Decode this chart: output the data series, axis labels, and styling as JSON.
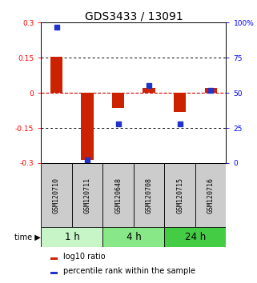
{
  "title": "GDS3433 / 13091",
  "samples": [
    "GSM120710",
    "GSM120711",
    "GSM120648",
    "GSM120708",
    "GSM120715",
    "GSM120716"
  ],
  "log10_ratio": [
    0.155,
    -0.285,
    -0.065,
    0.02,
    -0.08,
    0.02
  ],
  "percentile_rank": [
    97,
    2,
    28,
    55,
    28,
    52
  ],
  "ylim_left": [
    -0.3,
    0.3
  ],
  "ylim_right": [
    0,
    100
  ],
  "yticks_left": [
    -0.3,
    -0.15,
    0,
    0.15,
    0.3
  ],
  "yticks_right": [
    0,
    25,
    50,
    75,
    100
  ],
  "groups": [
    {
      "label": "1 h",
      "indices": [
        0,
        1
      ],
      "color": "#c8f5c8"
    },
    {
      "label": "4 h",
      "indices": [
        2,
        3
      ],
      "color": "#88e888"
    },
    {
      "label": "24 h",
      "indices": [
        4,
        5
      ],
      "color": "#44cc44"
    }
  ],
  "bar_color": "#cc2200",
  "dot_color": "#2233cc",
  "bar_width": 0.4,
  "dot_size": 22,
  "grid_color": "#000000",
  "zero_line_color": "#cc0000",
  "label_box_color": "#cccccc",
  "title_fontsize": 10,
  "tick_fontsize": 6.5,
  "legend_fontsize": 7,
  "time_fontsize": 8.5,
  "sample_fontsize": 6
}
